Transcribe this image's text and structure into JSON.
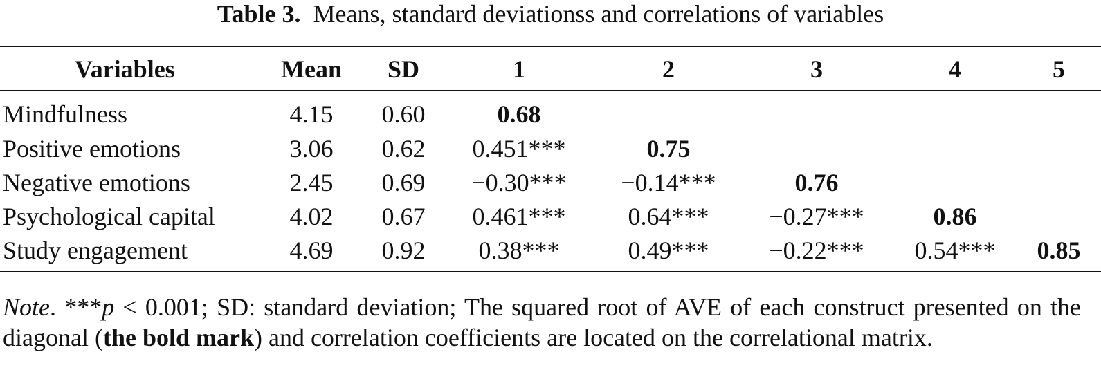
{
  "caption": {
    "label": "Table 3.",
    "text": "Means, standard deviationss and correlations of variables"
  },
  "headers": [
    "Variables",
    "Mean",
    "SD",
    "1",
    "2",
    "3",
    "4",
    "5"
  ],
  "rows": [
    {
      "name": "Mindfulness",
      "mean": "4.15",
      "sd": "0.60",
      "c1": "0.68",
      "c2": "",
      "c3": "",
      "c4": "",
      "c5": ""
    },
    {
      "name": "Positive emotions",
      "mean": "3.06",
      "sd": "0.62",
      "c1": "0.451***",
      "c2": "0.75",
      "c3": "",
      "c4": "",
      "c5": ""
    },
    {
      "name": "Negative emotions",
      "mean": "2.45",
      "sd": "0.69",
      "c1": "−0.30***",
      "c2": "−0.14***",
      "c3": "0.76",
      "c4": "",
      "c5": ""
    },
    {
      "name": "Psychological capital",
      "mean": "4.02",
      "sd": "0.67",
      "c1": "0.461***",
      "c2": "0.64***",
      "c3": "−0.27***",
      "c4": "0.86",
      "c5": ""
    },
    {
      "name": "Study engagement",
      "mean": "4.69",
      "sd": "0.92",
      "c1": "0.38***",
      "c2": "0.49***",
      "c3": "−0.22***",
      "c4": "0.54***",
      "c5": "0.85"
    }
  ],
  "note": {
    "label": "Note",
    "sig": "***",
    "p": "p",
    "part1": " < 0.001; SD: standard deviation; The squared root of AVE of each construct presented on the diagonal (",
    "bold": "the bold mark",
    "part2": ") and correlation coefficients are located on the correlational matrix."
  }
}
